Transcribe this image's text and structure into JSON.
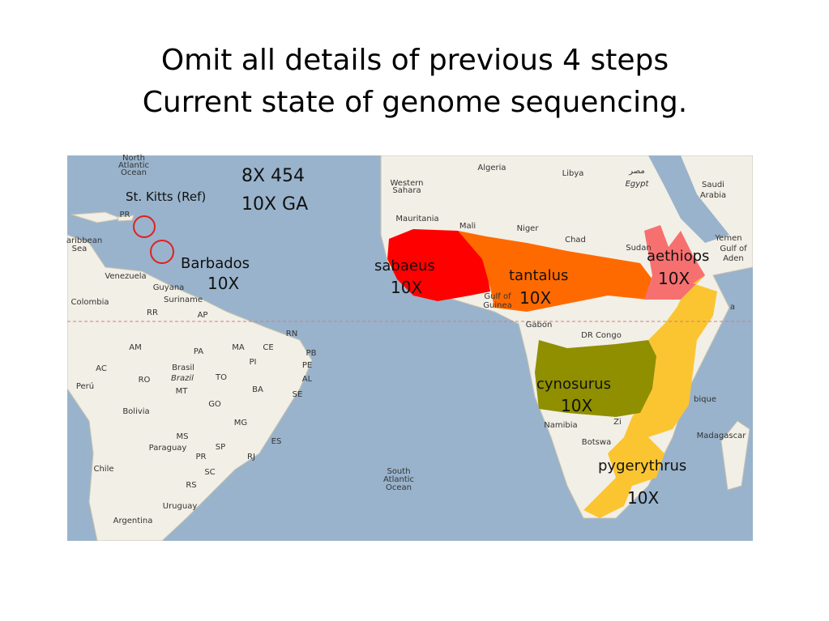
{
  "title": [
    "Omit all details of previous 4 steps",
    "Current state of genome sequencing."
  ],
  "annotations": [
    "8X 454",
    "10X GA",
    "St. Kitts (Ref)",
    "Barbados",
    "10X",
    "sabaeus",
    "10X",
    "tantalus",
    "10X",
    "aethiops",
    "10X",
    "cynosurus",
    "10X",
    "pygerythrus",
    "10X"
  ],
  "map_labels": [
    "North",
    "Atlantic",
    "Ocean",
    "PR",
    "aribbean",
    "Sea",
    "Venezuela",
    "Guyana",
    "Suriname",
    "Colombia",
    "RR",
    "AP",
    "AM",
    "PA",
    "MA",
    "CE",
    "RN",
    "PB",
    "PE",
    "AL",
    "SE",
    "PI",
    "AC",
    "RO",
    "Brasil",
    "Brazil",
    "TO",
    "BA",
    "MT",
    "Perú",
    "GO",
    "Bolivia",
    "MG",
    "MS",
    "ES",
    "Paraguay",
    "SP",
    "PR",
    "RJ",
    "SC",
    "Chile",
    "RS",
    "Uruguay",
    "Argentina",
    "South",
    "Atlantic",
    "Ocean",
    "Algeria",
    "Libya",
    "مصر",
    "Egypt",
    "Saudi",
    "Arabia",
    "Western",
    "Sahara",
    "Mauritania",
    "Mali",
    "Niger",
    "Chad",
    "Sudan",
    "Yemen",
    "Gulf of",
    "Aden",
    "Gulf of",
    "Guinea",
    "Gabon",
    "DR Congo",
    "bique",
    "Namibia",
    "Zi",
    "Botswa",
    "Madagascar",
    "a"
  ]
}
